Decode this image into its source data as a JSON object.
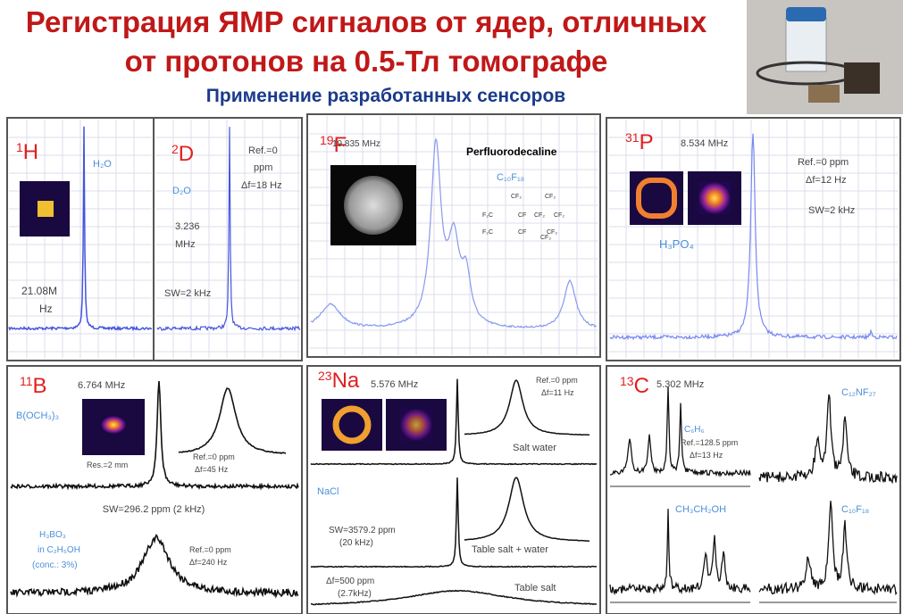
{
  "header": {
    "title_line1": "Регистрация ЯМР сигналов от ядер, отличных",
    "title_line2": "от протонов на 0.5-Тл томографе",
    "subtitle": "Применение разработанных сенсоров"
  },
  "panels": [
    {
      "mass": "1",
      "symbol": "H",
      "labels": [
        "H₂O",
        "21.08M",
        "Hz"
      ]
    },
    {
      "mass": "2",
      "symbol": "D",
      "labels": [
        "D₂O",
        "3.236",
        "MHz",
        "Ref.=0",
        "ppm",
        "Δf=18 Hz",
        "SW=2 kHz"
      ]
    },
    {
      "mass": "19",
      "symbol": "F",
      "labels": [
        "19.835 MHz",
        "Perfluorodecaline",
        "C₁₀F₁₈",
        "F₂C",
        "CF₂",
        "CF",
        "CF₂",
        "F₂C",
        "CF",
        "CF₂",
        "CF₂"
      ]
    },
    {
      "mass": "31",
      "symbol": "P",
      "labels": [
        "8.534 MHz",
        "Ref.=0 ppm",
        "Δf=12 Hz",
        "SW=2 kHz",
        "H₃PO₄"
      ]
    },
    {
      "mass": "11",
      "symbol": "B",
      "labels": [
        "6.764 MHz",
        "B(OCH₃)₃",
        "Res.=2 mm",
        "Ref.=0 ppm",
        "Δf=45 Hz",
        "SW=296.2 ppm (2 kHz)",
        "H₃BO₃",
        "in C₂H₅OH",
        "(conc.: 3%)",
        "Ref.=0 ppm",
        "Δf=240 Hz"
      ]
    },
    {
      "mass": "23",
      "symbol": "Na",
      "labels": [
        "5.576 MHz",
        "Ref.=0 ppm",
        "Δf=11 Hz",
        "Salt water",
        "NaCl",
        "SW=3579.2 ppm",
        "(20 kHz)",
        "Table salt + water",
        "Δf=500 ppm",
        "(2.7kHz)",
        "Table salt"
      ]
    },
    {
      "mass": "13",
      "symbol": "C",
      "labels": [
        "5.302 MHz",
        "C₆H₆",
        "Ref.=128.5 ppm",
        "Δf=13 Hz",
        "C₁₂NF₂₇",
        "CH₃CH₂OH",
        "C₁₀F₁₈"
      ]
    }
  ]
}
